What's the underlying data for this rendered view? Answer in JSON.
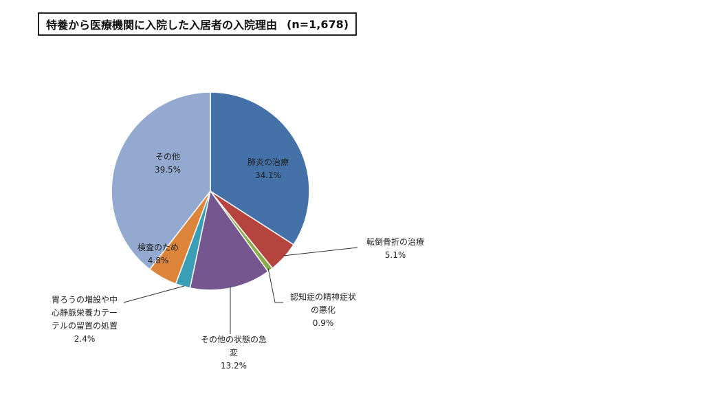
{
  "title": "特養から医療機関に入院した入居者の入院理由",
  "sample": "(n=1,678)",
  "chart_data": {
    "type": "pie",
    "title": "特養から医療機関に入院した入居者の入院理由",
    "subtitle": "(n=1,678)",
    "legend": "none",
    "slices": [
      {
        "lines": [
          "肺炎の治療"
        ],
        "percent": "34.1%",
        "value": 34.1,
        "color": "#4472a8"
      },
      {
        "lines": [
          "転倒骨折の治療"
        ],
        "percent": "5.1%",
        "value": 5.1,
        "color": "#b5443f"
      },
      {
        "lines": [
          "認知症の精神症状",
          "の悪化"
        ],
        "percent": "0.9%",
        "value": 0.9,
        "color": "#8bab4d"
      },
      {
        "lines": [
          "その他の状態の急",
          "変"
        ],
        "percent": "13.2%",
        "value": 13.2,
        "color": "#76568f"
      },
      {
        "lines": [
          "胃ろうの増設や中",
          "心静脈栄養カテー",
          "テルの留置の処置"
        ],
        "percent": "2.4%",
        "value": 2.4,
        "color": "#3a9fb6"
      },
      {
        "lines": [
          "検査のため"
        ],
        "percent": "4.8%",
        "value": 4.8,
        "color": "#dc843a"
      },
      {
        "lines": [
          "その他"
        ],
        "percent": "39.5%",
        "value": 39.5,
        "color": "#94a9d0"
      }
    ]
  }
}
